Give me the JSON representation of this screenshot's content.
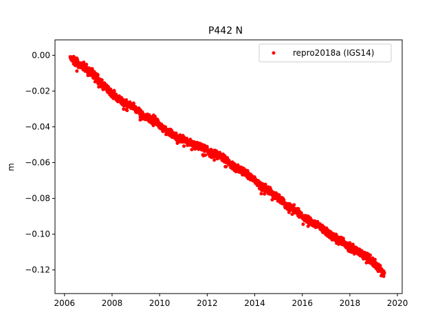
{
  "chart_data": {
    "type": "scatter",
    "title": "P442 N",
    "xlabel": "",
    "ylabel": "m",
    "xlim": [
      2005.6,
      2020.2
    ],
    "ylim": [
      -0.1332,
      0.0086
    ],
    "x_ticks": [
      2006,
      2008,
      2010,
      2012,
      2014,
      2016,
      2018,
      2020
    ],
    "x_tick_labels": [
      "2006",
      "2008",
      "2010",
      "2012",
      "2014",
      "2016",
      "2018",
      "2020"
    ],
    "y_ticks": [
      0.0,
      -0.02,
      -0.04,
      -0.06,
      -0.08,
      -0.1,
      -0.12
    ],
    "y_tick_labels": [
      "0.00",
      "−0.02",
      "−0.04",
      "−0.06",
      "−0.08",
      "−0.10",
      "−0.12"
    ],
    "grid": false,
    "legend_position": "top-right",
    "series": [
      {
        "name": "repro2018a (IGS14)",
        "color": "#ff0000",
        "marker": "circle",
        "x": [
          2006.25,
          2006.5,
          2006.75,
          2007.0,
          2007.25,
          2007.5,
          2007.75,
          2008.0,
          2008.25,
          2008.5,
          2008.75,
          2009.0,
          2009.25,
          2009.5,
          2009.75,
          2010.0,
          2010.25,
          2010.5,
          2010.75,
          2011.0,
          2011.25,
          2011.5,
          2011.75,
          2012.0,
          2012.25,
          2012.5,
          2012.75,
          2013.0,
          2013.25,
          2013.5,
          2013.75,
          2014.0,
          2014.25,
          2014.5,
          2014.75,
          2015.0,
          2015.25,
          2015.5,
          2015.75,
          2016.0,
          2016.25,
          2016.5,
          2016.75,
          2017.0,
          2017.25,
          2017.5,
          2017.75,
          2018.0,
          2018.25,
          2018.5,
          2018.75,
          2019.0,
          2019.25,
          2019.45
        ],
        "y": [
          -0.001,
          -0.004,
          -0.006,
          -0.008,
          -0.011,
          -0.015,
          -0.018,
          -0.021,
          -0.024,
          -0.026,
          -0.028,
          -0.03,
          -0.033,
          -0.035,
          -0.036,
          -0.039,
          -0.042,
          -0.044,
          -0.046,
          -0.047,
          -0.049,
          -0.05,
          -0.051,
          -0.053,
          -0.055,
          -0.056,
          -0.058,
          -0.061,
          -0.063,
          -0.065,
          -0.067,
          -0.07,
          -0.073,
          -0.075,
          -0.077,
          -0.08,
          -0.083,
          -0.085,
          -0.087,
          -0.09,
          -0.092,
          -0.094,
          -0.096,
          -0.099,
          -0.101,
          -0.103,
          -0.105,
          -0.107,
          -0.109,
          -0.111,
          -0.113,
          -0.116,
          -0.119,
          -0.122
        ]
      }
    ]
  }
}
